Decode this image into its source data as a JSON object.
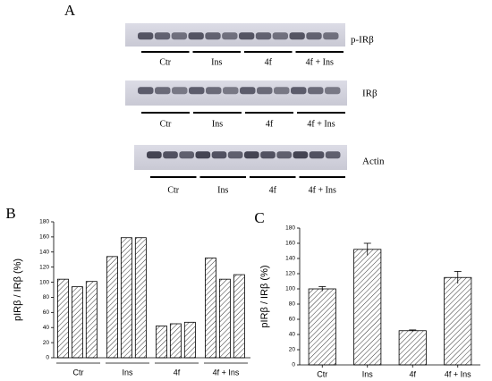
{
  "panel_a": {
    "label": "A",
    "blots": [
      "p-IRβ",
      "IRβ",
      "Actin"
    ],
    "groups": [
      "Ctr",
      "Ins",
      "4f",
      "4f + Ins"
    ]
  },
  "chart_data": [
    {
      "type": "grouped_bar",
      "panel": "B",
      "ylabel": "pIRβ / IRβ (%)",
      "groups": [
        {
          "label": "Ctr",
          "values": [
            104,
            94,
            101
          ]
        },
        {
          "label": "Ins",
          "values": [
            134,
            159,
            159
          ]
        },
        {
          "label": "4f",
          "values": [
            42,
            45,
            47
          ]
        },
        {
          "label": "4f + Ins",
          "values": [
            132,
            104,
            110
          ]
        }
      ],
      "ylim": [
        0,
        180
      ],
      "yticks": [
        0,
        20,
        40,
        60,
        80,
        100,
        120,
        140,
        160,
        180
      ]
    },
    {
      "type": "bar",
      "panel": "C",
      "ylabel": "pIRβ / IRβ (%)",
      "categories": [
        "Ctr",
        "Ins",
        "4f",
        "4f + Ins"
      ],
      "values": [
        100,
        152,
        45,
        115
      ],
      "errors": [
        3,
        8,
        1,
        8
      ],
      "ylim": [
        0,
        180
      ],
      "yticks": [
        0,
        20,
        40,
        60,
        80,
        100,
        120,
        140,
        160,
        180
      ]
    }
  ]
}
